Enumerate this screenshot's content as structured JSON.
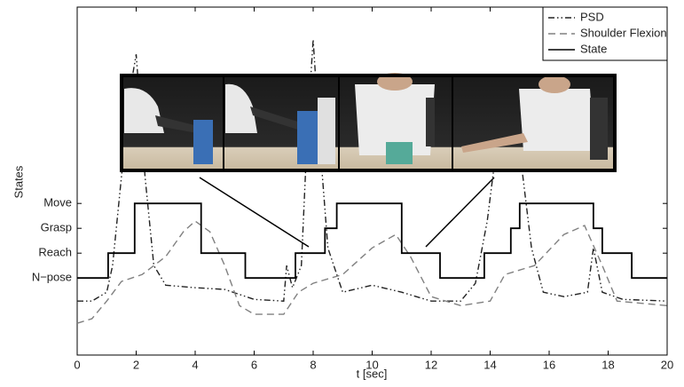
{
  "chart_data": {
    "type": "line",
    "x_label": "t [sec]",
    "y_label": "States",
    "xlim": [
      0,
      20
    ],
    "xticks": [
      0,
      2,
      4,
      6,
      8,
      10,
      12,
      14,
      16,
      18,
      20
    ],
    "ylim": [
      -3.1,
      10.9
    ],
    "yticks": [
      {
        "value": 0,
        "label": "N−pose"
      },
      {
        "value": 1,
        "label": "Reach"
      },
      {
        "value": 2,
        "label": "Grasp"
      },
      {
        "value": 3,
        "label": "Move"
      }
    ],
    "legend": "top-right",
    "series": [
      {
        "name": "PSD",
        "color": "#222222",
        "linestyle": "dashdot",
        "x": [
          0,
          0.5,
          1,
          1.2,
          1.5,
          1.8,
          2.0,
          2.3,
          2.6,
          3,
          4,
          5,
          6,
          7,
          7.1,
          7.3,
          7.6,
          7.8,
          8.0,
          8.2,
          8.5,
          9,
          10,
          11,
          12,
          13,
          13.5,
          13.9,
          14.2,
          14.6,
          15,
          15.4,
          15.8,
          16.5,
          17.3,
          17.5,
          17.8,
          18.5,
          20
        ],
        "values": [
          -0.93,
          -0.93,
          -0.57,
          0.5,
          4.07,
          7.6,
          9.0,
          4.07,
          0.5,
          -0.29,
          -0.39,
          -0.46,
          -0.86,
          -0.93,
          0.5,
          -0.39,
          0.5,
          5.86,
          9.6,
          5.86,
          1.21,
          -0.57,
          -0.29,
          -0.57,
          -0.93,
          -0.93,
          -0.21,
          2.29,
          5.1,
          6.9,
          5.14,
          1.21,
          -0.57,
          -0.75,
          -0.57,
          1.21,
          -0.57,
          -0.86,
          -0.93
        ]
      },
      {
        "name": "Shoulder Flexion",
        "color": "#808080",
        "linestyle": "dashed",
        "x": [
          0,
          0.5,
          1,
          1.5,
          2.2,
          3,
          3.6,
          4,
          4.5,
          5,
          5.5,
          6,
          7,
          7.5,
          8,
          9,
          10,
          10.8,
          11.3,
          12,
          13,
          14,
          14.5,
          15.5,
          16.5,
          17.2,
          17.8,
          18.3,
          20
        ],
        "values": [
          -1.82,
          -1.64,
          -0.93,
          -0.14,
          0.14,
          0.86,
          1.86,
          2.29,
          1.86,
          0.5,
          -1.11,
          -1.46,
          -1.46,
          -0.57,
          -0.21,
          0.14,
          1.21,
          1.75,
          0.86,
          -0.75,
          -1.11,
          -0.93,
          0.14,
          0.5,
          1.75,
          2.11,
          0.5,
          -0.93,
          -1.11
        ]
      },
      {
        "name": "State",
        "color": "#000000",
        "linestyle": "solid",
        "x": [
          0,
          1.05,
          1.05,
          1.95,
          1.95,
          4.2,
          4.2,
          5.7,
          5.7,
          7.4,
          7.4,
          8.4,
          8.4,
          8.8,
          8.8,
          11,
          11,
          12.3,
          12.3,
          13.8,
          13.8,
          14.7,
          14.7,
          15,
          15,
          17.5,
          17.5,
          17.8,
          17.8,
          18.8,
          18.8,
          20
        ],
        "values": [
          0,
          0,
          1,
          1,
          3,
          3,
          1,
          1,
          0,
          0,
          1,
          1,
          2,
          2,
          3,
          3,
          1,
          1,
          0,
          0,
          1,
          1,
          2,
          2,
          3,
          3,
          2,
          2,
          1,
          1,
          0,
          0
        ]
      }
    ]
  }
}
